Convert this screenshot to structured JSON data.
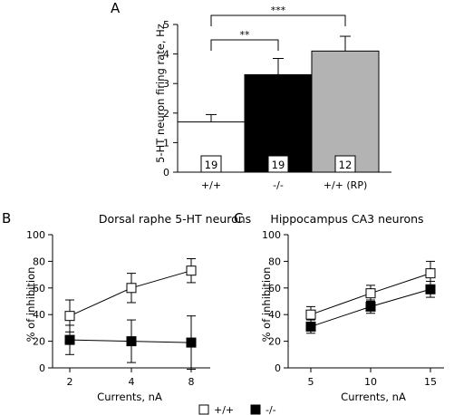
{
  "chart_data": [
    {
      "panel": "A",
      "type": "bar",
      "ylabel": "5-HT neuron firing rate, Hz",
      "ylim": [
        0,
        5
      ],
      "yticks": [
        0,
        1,
        2,
        3,
        4,
        5
      ],
      "categories": [
        "+/+",
        "-/-",
        "+/+ (RP)"
      ],
      "values": [
        1.7,
        3.3,
        4.1
      ],
      "errors": [
        0.25,
        0.55,
        0.5
      ],
      "n": [
        "19",
        "19",
        "12"
      ],
      "colors": [
        "#ffffff",
        "#000000",
        "#b3b3b3"
      ],
      "significance": [
        {
          "from": 0,
          "to": 1,
          "label": "**"
        },
        {
          "from": 0,
          "to": 2,
          "label": "***"
        }
      ]
    },
    {
      "panel": "B",
      "type": "line",
      "title": "Dorsal raphe 5-HT neurons",
      "xlabel": "Currents, nA",
      "ylabel": "% of inhibition",
      "x": [
        "2",
        "4",
        "8"
      ],
      "ylim": [
        0,
        100
      ],
      "yticks": [
        0,
        20,
        40,
        60,
        80,
        100
      ],
      "series": [
        {
          "name": "+/+",
          "values": [
            39,
            60,
            73
          ],
          "errors": [
            12,
            11,
            9
          ],
          "marker": "open-square"
        },
        {
          "name": "-/-",
          "values": [
            21,
            20,
            19
          ],
          "errors": [
            11,
            16,
            20
          ],
          "marker": "filled-square"
        }
      ]
    },
    {
      "panel": "C",
      "type": "line",
      "title": "Hippocampus CA3 neurons",
      "xlabel": "Currents, nA",
      "ylabel": "% of inhibition",
      "x": [
        "5",
        "10",
        "15"
      ],
      "ylim": [
        0,
        100
      ],
      "yticks": [
        0,
        20,
        40,
        60,
        80,
        100
      ],
      "series": [
        {
          "name": "+/+",
          "values": [
            40,
            56,
            71
          ],
          "errors": [
            6,
            6,
            9
          ],
          "marker": "open-square"
        },
        {
          "name": "-/-",
          "values": [
            31,
            46,
            59
          ],
          "errors": [
            5,
            5,
            6
          ],
          "marker": "filled-square"
        }
      ]
    }
  ],
  "legend": [
    {
      "label": "+/+",
      "marker": "open-square"
    },
    {
      "label": "-/-",
      "marker": "filled-square"
    }
  ]
}
